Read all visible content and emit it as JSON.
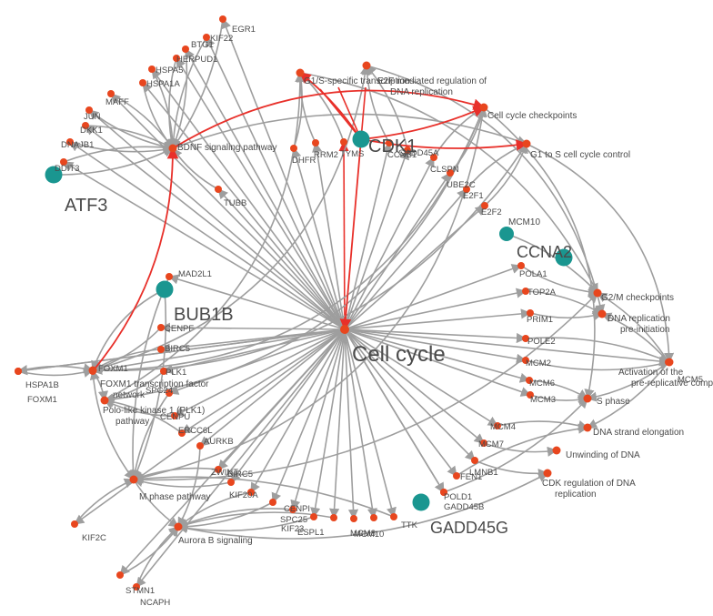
{
  "colors": {
    "edge": "#9e9e9e",
    "edge_highlight": "#e8302a",
    "gene_node": "#e8461e",
    "hub_node": "#1a9690",
    "label": "#4a4a4a"
  },
  "hubs": [
    {
      "id": "cell_cycle",
      "label": "Cell cycle"
    },
    {
      "id": "atf3",
      "label": "ATF3"
    },
    {
      "id": "cdk1",
      "label": "CDK1"
    },
    {
      "id": "bub1b",
      "label": "BUB1B"
    },
    {
      "id": "ccna2",
      "label": "CCNA2"
    },
    {
      "id": "gadd45g",
      "label": "GADD45G"
    },
    {
      "id": "mcm10",
      "label": "MCM10"
    }
  ],
  "pathways": [
    {
      "id": "bdnf",
      "label": "BDNF signaling pathway"
    },
    {
      "id": "g1s_tx",
      "label": "G1/S-specific transcription"
    },
    {
      "id": "e2f",
      "label": "E2F mediated regulation of DNA replication"
    },
    {
      "id": "checkpoints",
      "label": "Cell cycle checkpoints"
    },
    {
      "id": "g1s_ctrl",
      "label": "G1 to S cell cycle control"
    },
    {
      "id": "g2m",
      "label": "G2/M checkpoints"
    },
    {
      "id": "preinit",
      "label": "DNA replication pre-initiation"
    },
    {
      "id": "activation",
      "label": "Activation of the pre-replicative complex"
    },
    {
      "id": "sphase",
      "label": "S phase"
    },
    {
      "id": "elong",
      "label": "DNA strand elongation"
    },
    {
      "id": "unwind",
      "label": "Unwinding of DNA"
    },
    {
      "id": "cdkreg",
      "label": "CDK regulation of DNA replication"
    },
    {
      "id": "foxm1_net",
      "label": "FOXM1 transcription factor network"
    },
    {
      "id": "plk1_path",
      "label": "Polo-like kinase 1 (PLK1) pathway"
    },
    {
      "id": "mphase",
      "label": "M phase pathway"
    },
    {
      "id": "aurorab",
      "label": "Aurora B signaling"
    }
  ],
  "genes": [
    "EGR1",
    "KIF22",
    "BTG1",
    "HERPUD1",
    "HSPA5",
    "HSPA1A",
    "MAFF",
    "JUN",
    "DKK1",
    "DNAJB1",
    "DDIT3",
    "TUBB",
    "DHFR",
    "RRM2",
    "TYMS",
    "CCNB1",
    "GADD45A",
    "CLSPN",
    "UBE2C",
    "E2F1",
    "E2F2",
    "POLA1",
    "TOP2A",
    "PRIM1",
    "POLE2",
    "MCM2",
    "MCM6",
    "MCM3",
    "MCM4",
    "MCM7",
    "MCM5",
    "LMNB1",
    "FEN1",
    "POLD1",
    "GADD45B",
    "TTK",
    "MCM8",
    "MCM10b",
    "ESPL1",
    "KIF23",
    "SPC25",
    "CENPI",
    "KIF20A",
    "BIRC5b",
    "ZWINT",
    "AURKB",
    "ERCC6L",
    "CENPU",
    "SPC24",
    "PLK1",
    "BIRC5",
    "CENPF",
    "MAD2L1",
    "HSPA1B",
    "FOXM1",
    "FOXM1b",
    "KIF2C",
    "STMN1",
    "NCAPH"
  ],
  "gene_labels": {
    "EGR1": "EGR1",
    "KIF22": "KIF22",
    "BTG1": "BTG1",
    "HERPUD1": "HERPUD1",
    "HSPA5": "HSPA5",
    "HSPA1A": "HSPA1A",
    "MAFF": "MAFF",
    "JUN": "JUN",
    "DKK1": "DKK1",
    "DNAJB1": "DNAJB1",
    "DDIT3": "DDIT3",
    "TUBB": "TUBB",
    "DHFR": "DHFR",
    "RRM2": "RRM2",
    "TYMS": "TYMS",
    "CCNB1": "CCNB1",
    "GADD45A": "GADD45A",
    "CLSPN": "CLSPN",
    "UBE2C": "UBE2C",
    "E2F1": "E2F1",
    "E2F2": "E2F2",
    "POLA1": "POLA1",
    "TOP2A": "TOP2A",
    "PRIM1": "PRIM1",
    "POLE2": "POLE2",
    "MCM2": "MCM2",
    "MCM6": "MCM6",
    "MCM3": "MCM3",
    "MCM4": "MCM4",
    "MCM7": "MCM7",
    "MCM5": "MCM5",
    "LMNB1": "LMNB1",
    "FEN1": "FEN1",
    "POLD1": "POLD1",
    "GADD45B": "GADD45B",
    "TTK": "TTK",
    "MCM8": "MCM8",
    "MCM10b": "MCM10",
    "ESPL1": "ESPL1",
    "KIF23": "KIF23",
    "SPC25": "SPC25",
    "CENPI": "CENPI",
    "KIF20A": "KIF20A",
    "BIRC5b": "BIRC5",
    "ZWINT": "ZWINT",
    "AURKB": "AURKB",
    "ERCC6L": "ERCC6L",
    "CENPU": "CENPU",
    "SPC24": "SPC24",
    "PLK1": "PLK1",
    "BIRC5": "BIRC5",
    "CENPF": "CENPF",
    "MAD2L1": "MAD2L1",
    "HSPA1B": "HSPA1B",
    "FOXM1": "FOXM1",
    "FOXM1b": "FOXM1",
    "KIF2C": "KIF2C",
    "STMN1": "STMN1",
    "NCAPH": "NCAPH"
  },
  "highlight_edges": [
    [
      "cdk1",
      "cell_cycle"
    ],
    [
      "cdk1",
      "g1s_tx"
    ],
    [
      "cdk1",
      "checkpoints"
    ],
    [
      "cdk1",
      "g1s_ctrl"
    ],
    [
      "TYMS",
      "cell_cycle"
    ],
    [
      "bdnf",
      "checkpoints"
    ],
    [
      "FOXM1",
      "bdnf"
    ]
  ],
  "edges": [
    [
      "EGR1",
      "bdnf"
    ],
    [
      "KIF22",
      "bdnf"
    ],
    [
      "BTG1",
      "bdnf"
    ],
    [
      "HERPUD1",
      "bdnf"
    ],
    [
      "HSPA5",
      "bdnf"
    ],
    [
      "HSPA1A",
      "bdnf"
    ],
    [
      "MAFF",
      "bdnf"
    ],
    [
      "JUN",
      "bdnf"
    ],
    [
      "DKK1",
      "bdnf"
    ],
    [
      "DNAJB1",
      "bdnf"
    ],
    [
      "DDIT3",
      "bdnf"
    ],
    [
      "atf3",
      "bdnf"
    ],
    [
      "TUBB",
      "bdnf"
    ],
    [
      "HSPA1B",
      "foxm1_net"
    ],
    [
      "FOXM1b",
      "foxm1_net"
    ],
    [
      "DHFR",
      "g1s_tx"
    ],
    [
      "RRM2",
      "g1s_tx"
    ],
    [
      "TYMS",
      "g1s_tx"
    ],
    [
      "CCNB1",
      "e2f"
    ],
    [
      "GADD45A",
      "e2f"
    ],
    [
      "CLSPN",
      "checkpoints"
    ],
    [
      "UBE2C",
      "checkpoints"
    ],
    [
      "E2F1",
      "g1s_ctrl"
    ],
    [
      "E2F2",
      "g1s_ctrl"
    ],
    [
      "mcm10",
      "g2m"
    ],
    [
      "POLA1",
      "g2m"
    ],
    [
      "TOP2A",
      "preinit"
    ],
    [
      "PRIM1",
      "preinit"
    ],
    [
      "POLE2",
      "activation"
    ],
    [
      "MCM2",
      "activation"
    ],
    [
      "MCM6",
      "sphase"
    ],
    [
      "MCM3",
      "sphase"
    ],
    [
      "MCM4",
      "elong"
    ],
    [
      "MCM7",
      "unwind"
    ],
    [
      "MCM5",
      "activation"
    ],
    [
      "MCM5",
      "g2m"
    ],
    [
      "MCM5",
      "sphase"
    ],
    [
      "MCM5",
      "preinit"
    ],
    [
      "MCM5",
      "elong"
    ],
    [
      "LMNB1",
      "cdkreg"
    ],
    [
      "FEN1",
      "elong"
    ],
    [
      "POLD1",
      "sphase"
    ],
    [
      "KIF2C",
      "mphase"
    ],
    [
      "STMN1",
      "aurorab"
    ],
    [
      "NCAPH",
      "aurorab"
    ],
    [
      "SPC25",
      "aurorab"
    ],
    [
      "CENPI",
      "aurorab"
    ],
    [
      "KIF20A",
      "aurorab"
    ],
    [
      "BIRC5b",
      "mphase"
    ],
    [
      "ZWINT",
      "mphase"
    ],
    [
      "AURKB",
      "aurorab"
    ],
    [
      "ERCC6L",
      "plk1_path"
    ],
    [
      "CENPU",
      "plk1_path"
    ],
    [
      "SPC24",
      "mphase"
    ],
    [
      "PLK1",
      "plk1_path"
    ],
    [
      "BIRC5",
      "foxm1_net"
    ],
    [
      "CENPF",
      "foxm1_net"
    ],
    [
      "MAD2L1",
      "mphase"
    ],
    [
      "bub1b",
      "mphase"
    ],
    [
      "FOXM1",
      "foxm1_net"
    ],
    [
      "FOXM1",
      "plk1_path"
    ],
    [
      "ESPL1",
      "aurorab"
    ],
    [
      "KIF23",
      "aurorab"
    ],
    [
      "TTK",
      "mphase"
    ]
  ]
}
